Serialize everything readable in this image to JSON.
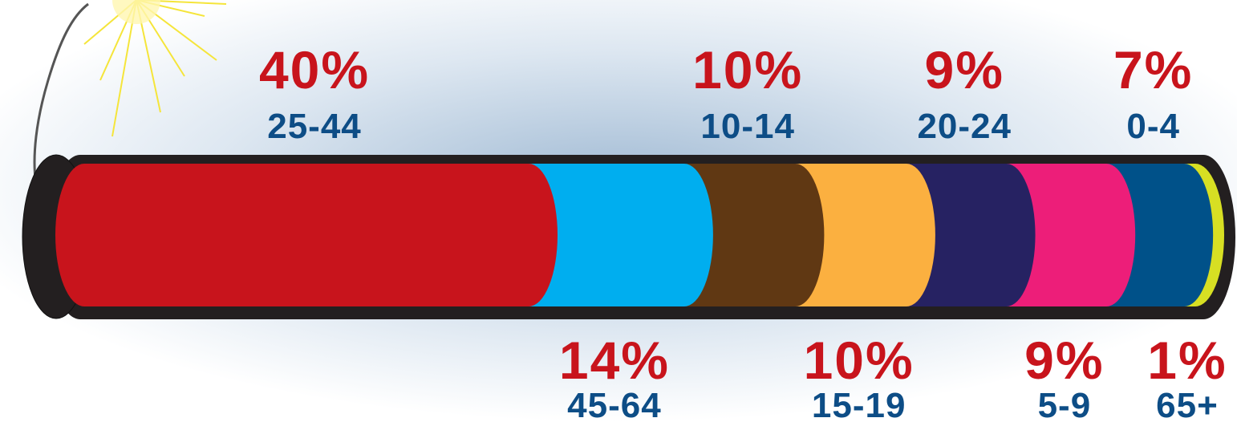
{
  "chart_data": {
    "type": "bar",
    "orientation": "horizontal",
    "stacked": true,
    "categories": [
      "25-44",
      "45-64",
      "10-14",
      "15-19",
      "20-24",
      "5-9",
      "0-4",
      "65+"
    ],
    "values": [
      40,
      14,
      10,
      10,
      9,
      9,
      7,
      1
    ],
    "value_labels": [
      "40%",
      "14%",
      "10%",
      "10%",
      "9%",
      "9%",
      "7%",
      "1%"
    ],
    "colors": [
      "#c8141c",
      "#00aeef",
      "#603813",
      "#fbb040",
      "#262262",
      "#ed1e79",
      "#005189",
      "#d7df23"
    ]
  }
}
